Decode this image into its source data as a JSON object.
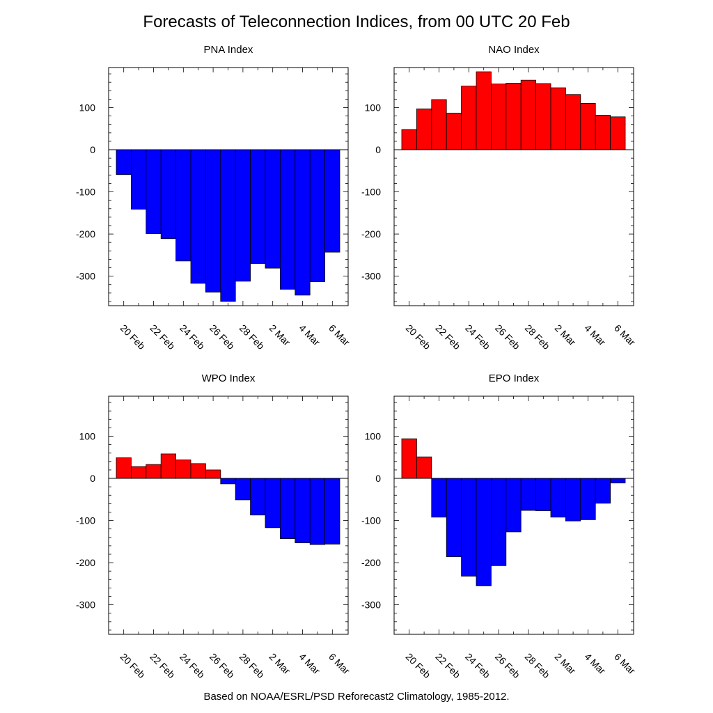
{
  "title": "Forecasts of Teleconnection Indices, from 00 UTC 20 Feb",
  "footer": "Based on NOAA/ESRL/PSD Reforecast2 Climatology, 1985-2012.",
  "colors": {
    "positive": "#ff0000",
    "negative": "#0000ff",
    "outline": "#000000"
  },
  "chart_data": [
    {
      "type": "bar",
      "title": "PNA Index",
      "categories": [
        "20 Feb",
        "21 Feb",
        "22 Feb",
        "23 Feb",
        "24 Feb",
        "25 Feb",
        "26 Feb",
        "27 Feb",
        "28 Feb",
        "1 Mar",
        "2 Mar",
        "3 Mar",
        "4 Mar",
        "5 Mar",
        "6 Mar"
      ],
      "values": [
        -59,
        -141,
        -199,
        -211,
        -264,
        -317,
        -338,
        -360,
        -312,
        -270,
        -281,
        -331,
        -345,
        -313,
        -243
      ],
      "xticks": [
        "20 Feb",
        "22 Feb",
        "24 Feb",
        "26 Feb",
        "28 Feb",
        "2 Mar",
        "4 Mar",
        "6 Mar"
      ],
      "yticks": [
        "100",
        "0",
        "-100",
        "-200",
        "-300"
      ],
      "ylim": [
        -370,
        195
      ],
      "xlabel": "",
      "ylabel": ""
    },
    {
      "type": "bar",
      "title": "NAO Index",
      "categories": [
        "20 Feb",
        "21 Feb",
        "22 Feb",
        "23 Feb",
        "24 Feb",
        "25 Feb",
        "26 Feb",
        "27 Feb",
        "28 Feb",
        "1 Mar",
        "2 Mar",
        "3 Mar",
        "4 Mar",
        "5 Mar",
        "6 Mar"
      ],
      "values": [
        48,
        97,
        119,
        87,
        151,
        185,
        156,
        158,
        165,
        157,
        147,
        131,
        110,
        82,
        78
      ],
      "xticks": [
        "20 Feb",
        "22 Feb",
        "24 Feb",
        "26 Feb",
        "28 Feb",
        "2 Mar",
        "4 Mar",
        "6 Mar"
      ],
      "yticks": [
        "100",
        "0",
        "-100",
        "-200",
        "-300"
      ],
      "ylim": [
        -370,
        195
      ],
      "xlabel": "",
      "ylabel": ""
    },
    {
      "type": "bar",
      "title": "WPO Index",
      "categories": [
        "20 Feb",
        "21 Feb",
        "22 Feb",
        "23 Feb",
        "24 Feb",
        "25 Feb",
        "26 Feb",
        "27 Feb",
        "28 Feb",
        "1 Mar",
        "2 Mar",
        "3 Mar",
        "4 Mar",
        "5 Mar",
        "6 Mar"
      ],
      "values": [
        49,
        28,
        33,
        58,
        44,
        35,
        20,
        -13,
        -51,
        -87,
        -117,
        -143,
        -153,
        -157,
        -156
      ],
      "xticks": [
        "20 Feb",
        "22 Feb",
        "24 Feb",
        "26 Feb",
        "28 Feb",
        "2 Mar",
        "4 Mar",
        "6 Mar"
      ],
      "yticks": [
        "100",
        "0",
        "-100",
        "-200",
        "-300"
      ],
      "ylim": [
        -370,
        195
      ],
      "xlabel": "",
      "ylabel": ""
    },
    {
      "type": "bar",
      "title": "EPO Index",
      "categories": [
        "20 Feb",
        "21 Feb",
        "22 Feb",
        "23 Feb",
        "24 Feb",
        "25 Feb",
        "26 Feb",
        "27 Feb",
        "28 Feb",
        "1 Mar",
        "2 Mar",
        "3 Mar",
        "4 Mar",
        "5 Mar",
        "6 Mar"
      ],
      "values": [
        94,
        51,
        -92,
        -186,
        -232,
        -255,
        -207,
        -127,
        -76,
        -77,
        -92,
        -101,
        -98,
        -59,
        -11
      ],
      "xticks": [
        "20 Feb",
        "22 Feb",
        "24 Feb",
        "26 Feb",
        "28 Feb",
        "2 Mar",
        "4 Mar",
        "6 Mar"
      ],
      "yticks": [
        "100",
        "0",
        "-100",
        "-200",
        "-300"
      ],
      "ylim": [
        -370,
        195
      ],
      "xlabel": "",
      "ylabel": ""
    }
  ]
}
